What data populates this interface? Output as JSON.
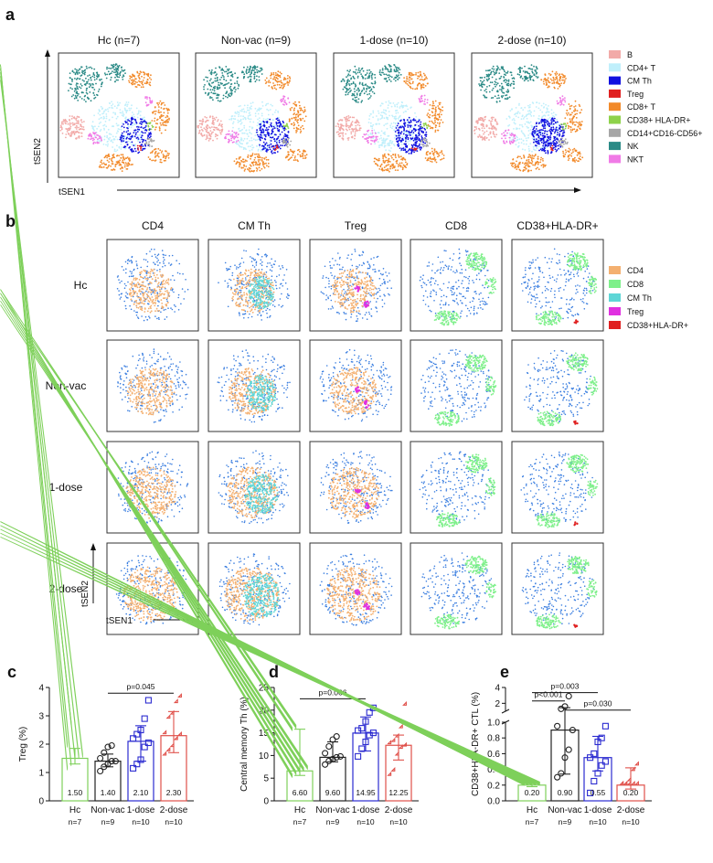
{
  "figure": {
    "panel_a": {
      "label": "a",
      "groups": [
        "Hc (n=7)",
        "Non-vac (n=9)",
        "1-dose (n=10)",
        "2-dose (n=10)"
      ],
      "axis_y": "tSEN2",
      "axis_x": "tSEN1",
      "legend": [
        {
          "label": "B",
          "color": "#f2aaa8"
        },
        {
          "label": "CD4+ T",
          "color": "#bfeffb"
        },
        {
          "label": "CM Th",
          "color": "#1010e0"
        },
        {
          "label": "Treg",
          "color": "#e02020"
        },
        {
          "label": "CD8+ T",
          "color": "#f28a2a"
        },
        {
          "label": "CD38+ HLA-DR+",
          "color": "#8ed24a"
        },
        {
          "label": "CD14+CD16-CD56+",
          "color": "#a6a6a6"
        },
        {
          "label": "NK",
          "color": "#2a8a86"
        },
        {
          "label": "NKT",
          "color": "#f07ae6"
        }
      ]
    },
    "panel_b": {
      "label": "b",
      "columns": [
        "CD4",
        "CM Th",
        "Treg",
        "CD8",
        "CD38+HLA-DR+"
      ],
      "rows": [
        "Hc",
        "Non-vac",
        "1-dose",
        "2-dose"
      ],
      "axis_y": "tSEN2",
      "axis_x": "tSEN1",
      "legend": [
        {
          "label": "CD4",
          "color": "#f4b070"
        },
        {
          "label": "CD8",
          "color": "#7ef08a"
        },
        {
          "label": "CM Th",
          "color": "#5ed6d6"
        },
        {
          "label": "Treg",
          "color": "#e030e0"
        },
        {
          "label": "CD38+HLA-DR+",
          "color": "#e02020"
        }
      ],
      "background_color": "#3a7ee0"
    }
  },
  "chart_data": [
    {
      "type": "bar",
      "label": "c",
      "ylabel": "Treg (%)",
      "ylim": [
        0,
        4
      ],
      "yticks": [
        "0",
        "1",
        "2",
        "3",
        "4"
      ],
      "categories": [
        "Hc",
        "Non-vac",
        "1-dose",
        "2-dose"
      ],
      "n_labels": [
        "n=7",
        "n=9",
        "n=10",
        "n=10"
      ],
      "values": [
        1.5,
        1.4,
        2.1,
        2.3
      ],
      "value_labels": [
        "1.50",
        "1.40",
        "2.10",
        "2.30"
      ],
      "err_low": [
        1.3,
        1.2,
        1.4,
        1.7
      ],
      "err_high": [
        1.85,
        1.65,
        2.65,
        3.15
      ],
      "colors": [
        "#7ed05a",
        "#222222",
        "#2b2bd0",
        "#e0504a"
      ],
      "markers": [
        "diamond",
        "circle",
        "square",
        "triangle"
      ],
      "points": [
        [
          1.1,
          1.25,
          1.45,
          1.5,
          1.55,
          1.9,
          2.7
        ],
        [
          1.05,
          1.2,
          1.3,
          1.4,
          1.4,
          1.5,
          1.7,
          1.9,
          1.95
        ],
        [
          1.15,
          1.3,
          1.45,
          1.9,
          2.05,
          2.2,
          2.35,
          2.5,
          2.9,
          3.55
        ],
        [
          1.6,
          1.75,
          1.9,
          2.15,
          2.3,
          2.35,
          2.9,
          3.05,
          3.45,
          3.65
        ]
      ],
      "brackets": [
        {
          "from": 1,
          "to": 3,
          "text": "p=0.045",
          "y": 3.8
        }
      ]
    },
    {
      "type": "bar",
      "label": "d",
      "ylabel": "Central memory Th (%)",
      "ylim": [
        0,
        25
      ],
      "yticks": [
        "0",
        "5",
        "10",
        "15",
        "20",
        "25"
      ],
      "categories": [
        "Hc",
        "Non-vac",
        "1-dose",
        "2-dose"
      ],
      "n_labels": [
        "n=7",
        "n=9",
        "n=10",
        "n=10"
      ],
      "values": [
        6.6,
        9.6,
        14.95,
        12.25
      ],
      "value_labels": [
        "6.60",
        "9.60",
        "14.95",
        "12.25"
      ],
      "err_low": [
        5.6,
        8.6,
        11.0,
        9.0
      ],
      "err_high": [
        15.8,
        13.0,
        18.5,
        14.5
      ],
      "colors": [
        "#7ed05a",
        "#222222",
        "#2b2bd0",
        "#e0504a"
      ],
      "markers": [
        "diamond",
        "circle",
        "square",
        "triangle"
      ],
      "points": [
        [
          5.2,
          5.8,
          6.2,
          6.6,
          7.0,
          15.5,
          16.0
        ],
        [
          8.0,
          8.8,
          9.2,
          9.6,
          9.8,
          10.5,
          12.0,
          13.5,
          14.2
        ],
        [
          9.8,
          11.5,
          13.0,
          14.5,
          15.0,
          15.5,
          16.0,
          17.5,
          19.5,
          20.5
        ],
        [
          5.5,
          6.5,
          10.0,
          11.5,
          12.0,
          12.5,
          13.0,
          14.0,
          16.0,
          21.0
        ]
      ],
      "brackets": [
        {
          "from": 0,
          "to": 2,
          "text": "p=0.066",
          "y": 22.5
        }
      ]
    },
    {
      "type": "bar",
      "label": "e",
      "ylabel": "CD38+HLA-DR+ CTL (%)",
      "ylim": [
        0,
        4
      ],
      "yticks_lower": [
        "0.0",
        "0.2",
        "0.4",
        "0.6",
        "0.8",
        "1.0"
      ],
      "yticks_upper": [
        "2",
        "4"
      ],
      "categories": [
        "Hc",
        "Non-vac",
        "1-dose",
        "2-dose"
      ],
      "n_labels": [
        "n=7",
        "n=9",
        "n=10",
        "n=10"
      ],
      "values": [
        0.2,
        0.9,
        0.55,
        0.2
      ],
      "value_labels": [
        "0.20",
        "0.90",
        "0.55",
        "0.20"
      ],
      "err_low": [
        0.18,
        0.34,
        0.38,
        0.15
      ],
      "err_high": [
        0.22,
        1.45,
        0.82,
        0.42
      ],
      "colors": [
        "#7ed05a",
        "#222222",
        "#2b2bd0",
        "#e0504a"
      ],
      "markers": [
        "diamond",
        "circle",
        "square",
        "triangle"
      ],
      "points": [
        [
          0.2,
          0.2,
          0.2,
          0.2,
          0.2,
          0.2,
          0.2
        ],
        [
          0.3,
          0.35,
          0.55,
          0.65,
          0.9,
          0.95,
          1.3,
          1.6,
          2.9
        ],
        [
          0.1,
          0.25,
          0.35,
          0.45,
          0.5,
          0.55,
          0.6,
          0.75,
          0.8,
          0.95
        ],
        [
          0.2,
          0.2,
          0.2,
          0.2,
          0.2,
          0.2,
          0.2,
          0.25,
          0.38,
          0.45
        ]
      ],
      "brackets": [
        {
          "from": 0,
          "to": 1,
          "text": "p<0.001",
          "y": 2.3
        },
        {
          "from": 0,
          "to": 2,
          "text": "p=0.003",
          "y": 3.35
        },
        {
          "from": 1,
          "to": 3,
          "text": "p=0.030",
          "y": 1.15
        }
      ]
    }
  ]
}
